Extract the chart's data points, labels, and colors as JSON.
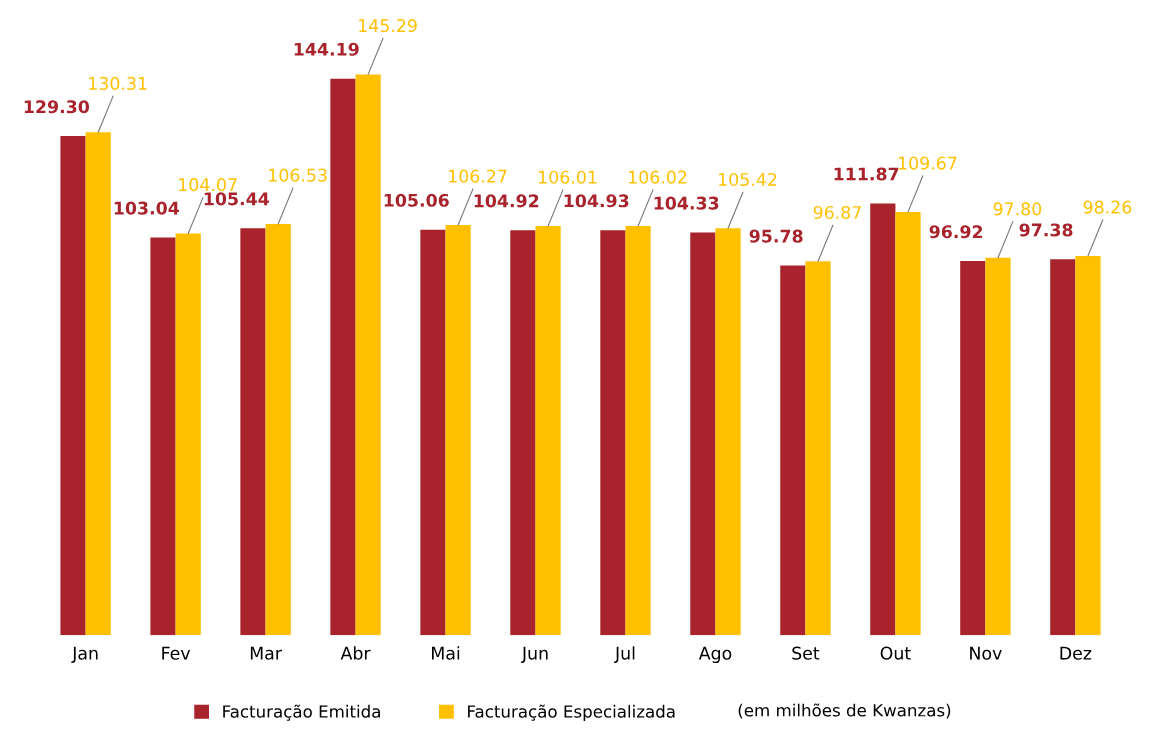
{
  "chart_data": {
    "type": "bar",
    "categories": [
      "Jan",
      "Fev",
      "Mar",
      "Abr",
      "Mai",
      "Jun",
      "Jul",
      "Ago",
      "Set",
      "Out",
      "Nov",
      "Dez"
    ],
    "series": [
      {
        "name": "Facturação Emitida",
        "color": "#a8232b",
        "values": [
          129.3,
          103.04,
          105.44,
          144.19,
          105.06,
          104.92,
          104.93,
          104.33,
          95.78,
          111.87,
          96.92,
          97.38
        ],
        "value_labels": [
          "129.30",
          "103.04",
          "105.44",
          "144.19",
          "105.06",
          "104.92",
          "104.93",
          "104.33",
          "95.78",
          "111.87",
          "96.92",
          "97.38"
        ]
      },
      {
        "name": "Facturação Especializada",
        "color": "#ffc000",
        "values": [
          130.31,
          104.07,
          106.53,
          145.29,
          106.27,
          106.01,
          106.02,
          105.42,
          96.87,
          109.67,
          97.8,
          98.26
        ],
        "value_labels": [
          "130.31",
          "104.07",
          "106.53",
          "145.29",
          "106.27",
          "106.01",
          "106.02",
          "105.42",
          "96.87",
          "109.67",
          "97.80",
          "98.26"
        ]
      }
    ],
    "tick_labels": "x",
    "legend": "bottom",
    "grid": false,
    "annotations": [
      "(em milhões de Kwanzas)"
    ]
  }
}
